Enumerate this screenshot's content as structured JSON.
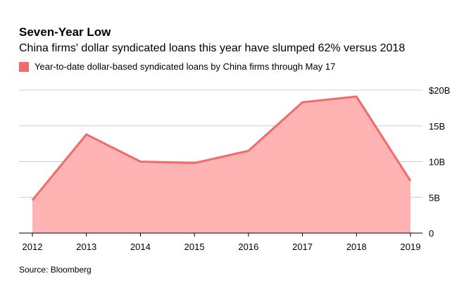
{
  "header": {
    "title": "Seven-Year Low",
    "subtitle": "China firms' dollar syndicated loans this year have slumped 62% versus 2018"
  },
  "legend": {
    "label": "Year-to-date dollar-based syndicated loans by China firms through May 17",
    "color": "#f26a6a"
  },
  "footer": {
    "source": "Source: Bloomberg"
  },
  "colors": {
    "line": "#f26a6a",
    "fill": "#ffb3b3",
    "grid": "#cccccc",
    "axis": "#000000"
  },
  "chart_data": {
    "type": "area",
    "title": "Seven-Year Low",
    "subtitle": "China firms' dollar syndicated loans this year have slumped 62% versus 2018",
    "x": [
      "2012",
      "2013",
      "2014",
      "2015",
      "2016",
      "2017",
      "2018",
      "2019"
    ],
    "series": [
      {
        "name": "Year-to-date dollar-based syndicated loans by China firms through May 17",
        "values": [
          4.6,
          13.8,
          10.0,
          9.8,
          11.5,
          18.3,
          19.1,
          7.3
        ]
      }
    ],
    "ylim": [
      0,
      20
    ],
    "yticks": [
      0,
      5,
      10,
      15,
      20
    ],
    "ytick_labels": [
      "0",
      "5B",
      "10B",
      "15B",
      "$20B"
    ],
    "grid": true,
    "y_axis_position": "right",
    "legend_position": "top-left"
  }
}
